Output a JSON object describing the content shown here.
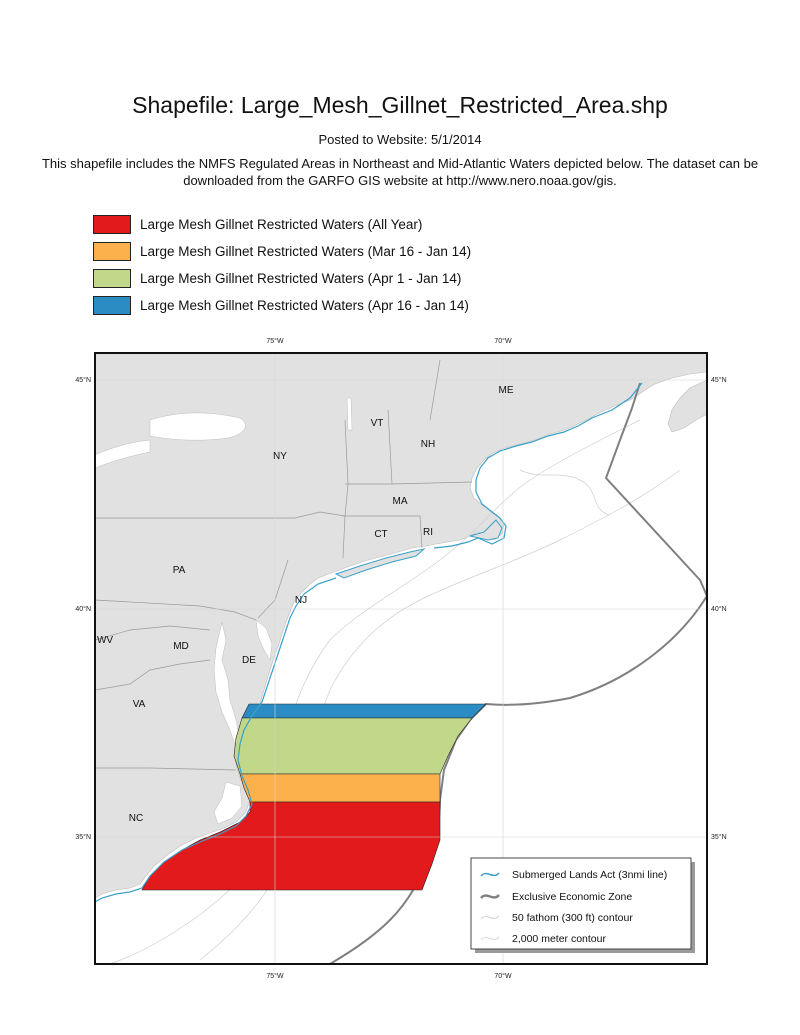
{
  "title": "Shapefile: Large_Mesh_Gillnet_Restricted_Area.shp",
  "posted": "Posted to Website: 5/1/2014",
  "description": "This shapefile includes the NMFS Regulated Areas in Northeast and Mid-Atlantic Waters depicted below. The dataset can be downloaded from the GARFO GIS website at http://www.nero.noaa.gov/gis.",
  "areas_legend": [
    {
      "label": "Large Mesh Gillnet Restricted Waters (All Year)",
      "color": "#e31a1c"
    },
    {
      "label": "Large Mesh Gillnet Restricted Waters (Mar 16 - Jan 14)",
      "color": "#fdb14c"
    },
    {
      "label": "Large Mesh Gillnet Restricted Waters (Apr 1 - Jan 14)",
      "color": "#c1d78a"
    },
    {
      "label": "Large Mesh Gillnet Restricted Waters (Apr 16 - Jan 14)",
      "color": "#2b8cc4"
    }
  ],
  "map": {
    "longitude_ticks": [
      "75°W",
      "70°W"
    ],
    "latitude_ticks": [
      "45°N",
      "40°N",
      "35°N"
    ],
    "states": {
      "me": "ME",
      "vt": "VT",
      "nh": "NH",
      "ny": "NY",
      "ma": "MA",
      "ct": "CT",
      "ri": "RI",
      "pa": "PA",
      "nj": "NJ",
      "wv": "WV",
      "md": "MD",
      "de": "DE",
      "va": "VA",
      "nc": "NC"
    },
    "land_color": "#e1e1e1",
    "ocean_color": "#ffffff",
    "legend": {
      "sla": "Submerged Lands Act (3nmi line)",
      "eez": "Exclusive Economic Zone",
      "fathom": "50 fathom (300 ft) contour",
      "meter": "2,000 meter contour"
    },
    "sla_color": "#3aa0c8",
    "eez_color": "#808080"
  }
}
